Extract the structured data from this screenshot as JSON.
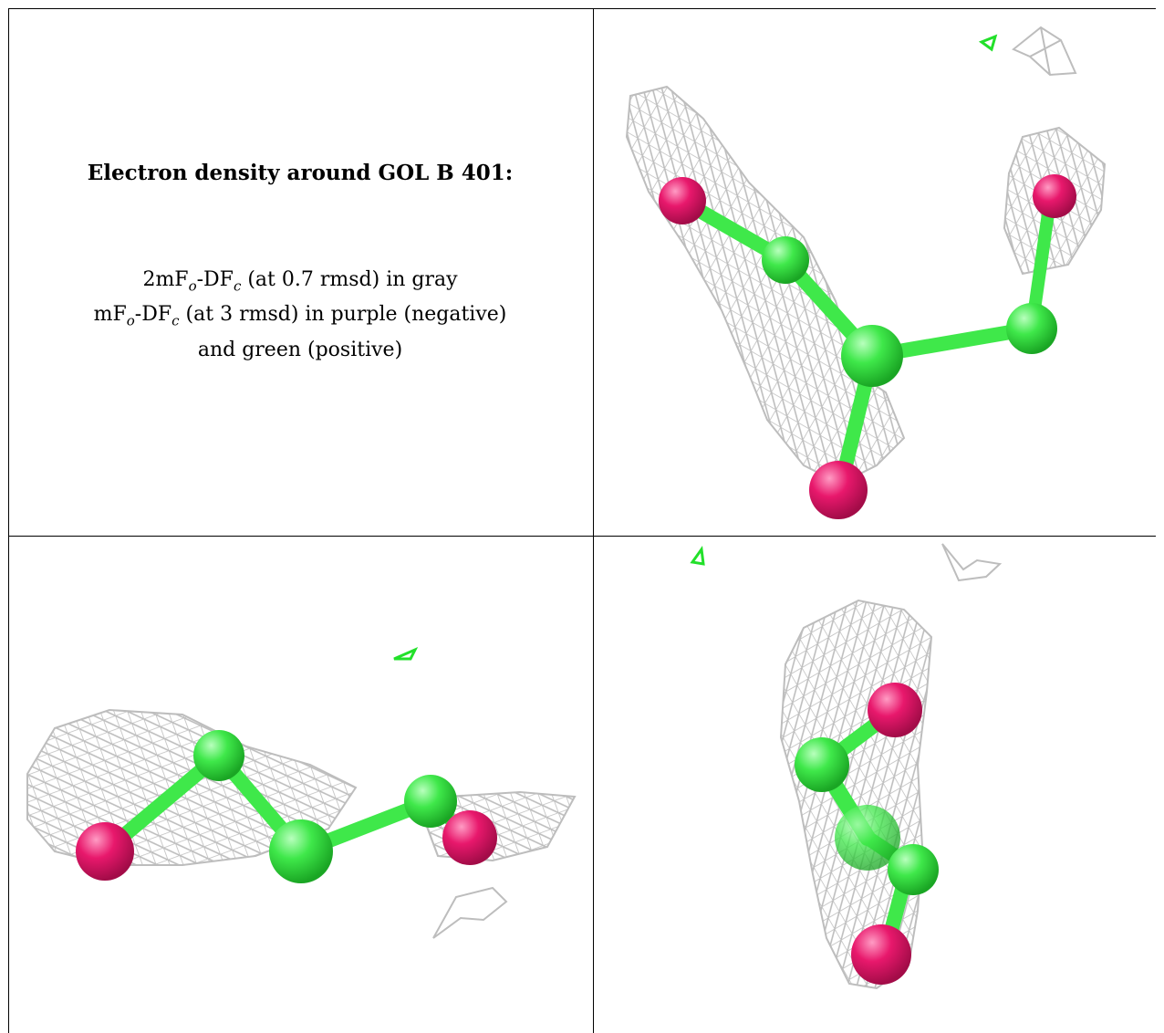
{
  "caption": {
    "title": "Electron density around GOL B 401:",
    "line1_pre": "2mF",
    "line1_sub1": "o",
    "line1_mid": "-DF",
    "line1_sub2": "c",
    "line1_post": " (at 0.7 rmsd) in gray",
    "line2_pre": "mF",
    "line2_sub1": "o",
    "line2_mid": "-DF",
    "line2_sub2": "c",
    "line2_post": " (at 3 rmsd) in purple (negative)",
    "line3": "and green (positive)"
  },
  "colors": {
    "carbon": "#3fe84a",
    "oxygen": "#e8186c",
    "mesh": "#bdbdbd",
    "positive_density": "#22e02a"
  },
  "panels": [
    {
      "name": "view-top-right"
    },
    {
      "name": "view-bottom-left"
    },
    {
      "name": "view-bottom-right"
    }
  ]
}
